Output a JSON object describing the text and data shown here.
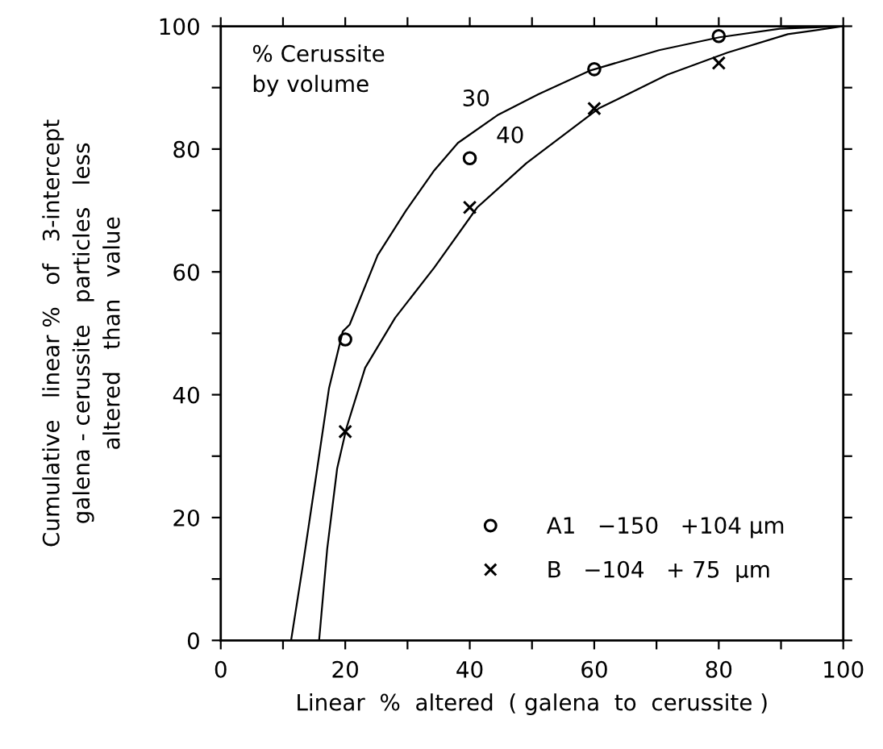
{
  "chart_data": {
    "type": "scatter",
    "xlabel": "Linear  %  altered  ( galena  to  cerussite )",
    "ylabel": "Cumulative   linear %   of   3-intercept\ngalena - cerussite   particles   less\naltered   than   value",
    "xlim": [
      0,
      100
    ],
    "ylim": [
      0,
      100
    ],
    "xticks": [
      0,
      {
        "value": 10,
        "label": null
      },
      20,
      {
        "value": 30,
        "label": null
      },
      40,
      {
        "value": 50,
        "label": null
      },
      60,
      {
        "value": 70,
        "label": null
      },
      80,
      {
        "value": 90,
        "label": null
      },
      100
    ],
    "yticks": [
      0,
      {
        "value": 10,
        "label": null
      },
      20,
      {
        "value": 30,
        "label": null
      },
      40,
      {
        "value": 50,
        "label": null
      },
      60,
      {
        "value": 70,
        "label": null
      },
      80,
      {
        "value": 90,
        "label": null
      },
      100
    ],
    "grid": false,
    "legend": "bottom right",
    "annotations": [
      "% Cerussite\nby volume",
      "30",
      "40"
    ],
    "series": [
      {
        "name": "A1   −150   +104 µm",
        "color": "#000000",
        "marker": "circle",
        "x": [
          20,
          40,
          60,
          80
        ],
        "values": [
          49,
          78.5,
          93,
          98.4
        ]
      },
      {
        "name": "B   −104   + 75  µm",
        "color": "#000000",
        "marker": "cross",
        "x": [
          20,
          40,
          60,
          80
        ],
        "values": [
          34,
          70.5,
          86.6,
          94
        ]
      },
      {
        "type": "line",
        "color": "#000000",
        "marker": "none",
        "line_style": "solid",
        "x": [
          11.3,
          13.2,
          15.5,
          17.4,
          19.6,
          20.7,
          25.2,
          29.7,
          34.2,
          38.1,
          44.6,
          51,
          59.4,
          70.4,
          80.1,
          89.8,
          100
        ],
        "values": [
          0,
          12.3,
          28,
          41.1,
          50.3,
          51.4,
          62.7,
          69.9,
          76.4,
          81,
          85.6,
          88.9,
          92.8,
          96.1,
          98.2,
          99.6,
          100
        ]
      },
      {
        "type": "line",
        "color": "#000000",
        "marker": "none",
        "line_style": "solid",
        "x": [
          15.8,
          17.1,
          18.7,
          20.2,
          23.2,
          28,
          34.3,
          41.2,
          49.1,
          60.7,
          71.7,
          81.4,
          91.1,
          100
        ],
        "values": [
          0,
          14.9,
          28,
          34.6,
          44.4,
          52.5,
          60.7,
          70.5,
          77.7,
          86.6,
          92.1,
          95.7,
          98.7,
          100
        ]
      }
    ]
  }
}
